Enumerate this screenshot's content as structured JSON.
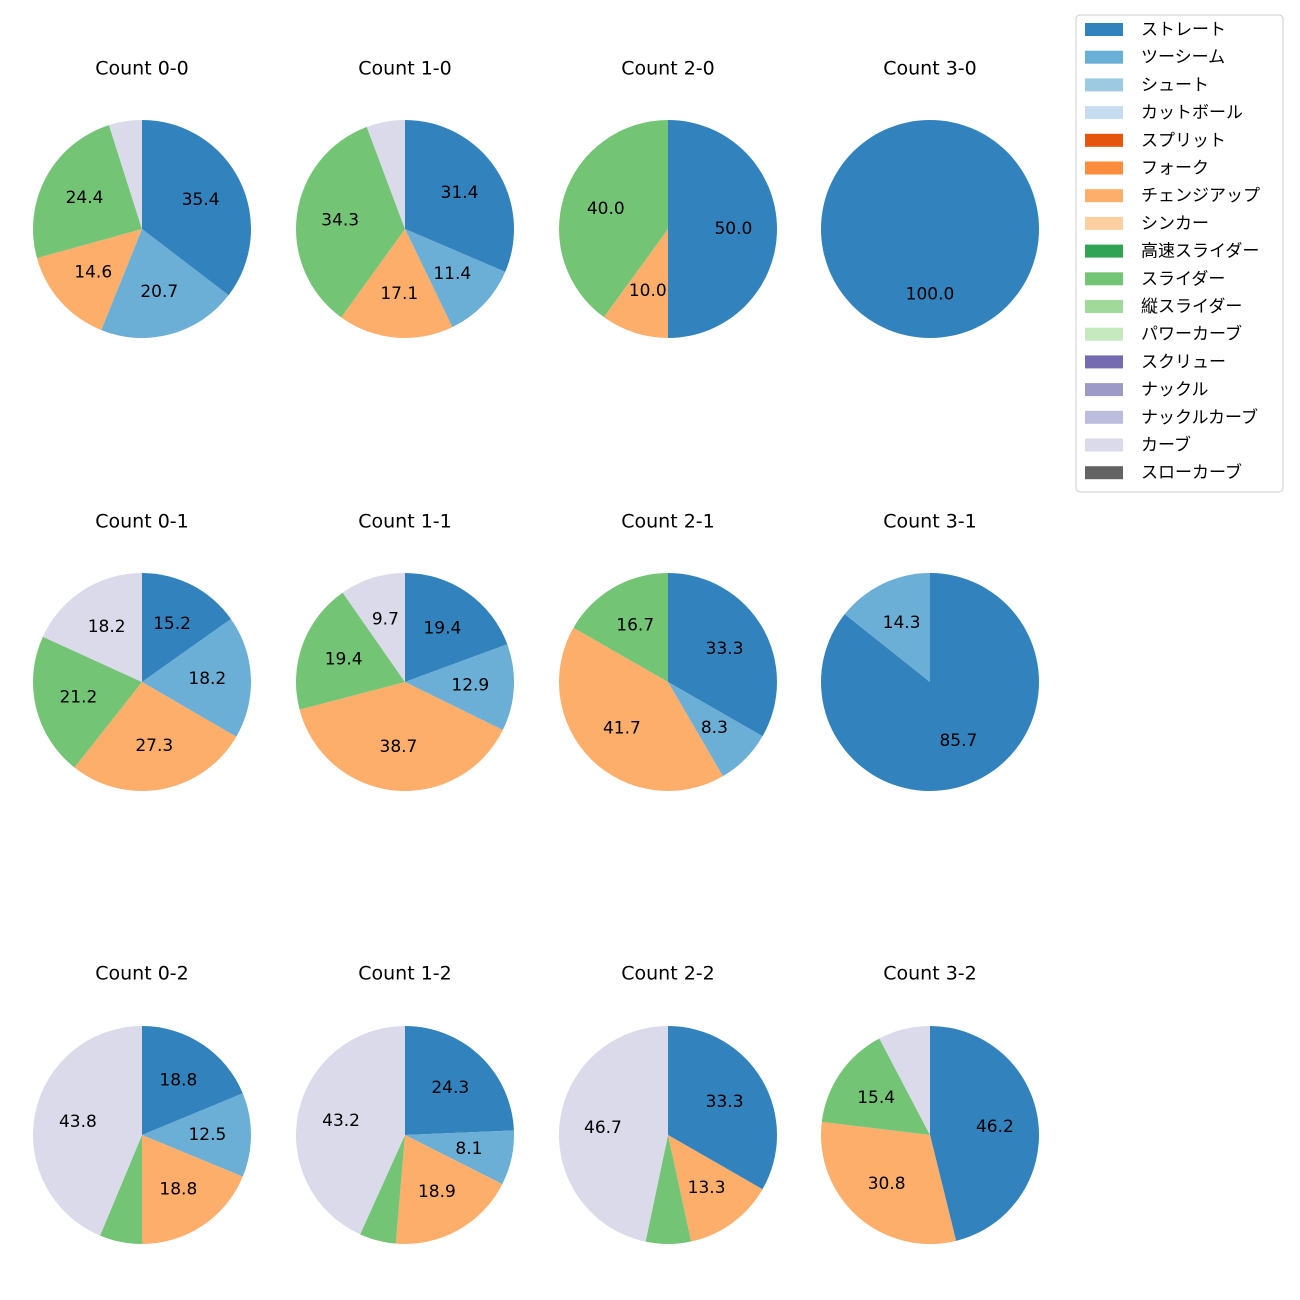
{
  "legend": [
    {
      "name": "ストレート",
      "color": "#3182bd"
    },
    {
      "name": "ツーシーム",
      "color": "#6baed6"
    },
    {
      "name": "シュート",
      "color": "#9ecae1"
    },
    {
      "name": "カットボール",
      "color": "#c6dbef"
    },
    {
      "name": "スプリット",
      "color": "#e6550d"
    },
    {
      "name": "フォーク",
      "color": "#fd8d3c"
    },
    {
      "name": "チェンジアップ",
      "color": "#fdae6b"
    },
    {
      "name": "シンカー",
      "color": "#fdd0a2"
    },
    {
      "name": "高速スライダー",
      "color": "#31a354"
    },
    {
      "name": "スライダー",
      "color": "#74c476"
    },
    {
      "name": "縦スライダー",
      "color": "#a1d99b"
    },
    {
      "name": "パワーカーブ",
      "color": "#c7e9c0"
    },
    {
      "name": "スクリュー",
      "color": "#756bb1"
    },
    {
      "name": "ナックル",
      "color": "#9e9ac8"
    },
    {
      "name": "ナックルカーブ",
      "color": "#bcbddc"
    },
    {
      "name": "カーブ",
      "color": "#dadaeb"
    },
    {
      "name": "スローカーブ",
      "color": "#636363"
    }
  ],
  "chart_data": [
    {
      "type": "pie",
      "title": "Count 0-0",
      "slices": [
        {
          "category": "ストレート",
          "value": 35.4,
          "label": "35.4"
        },
        {
          "category": "ツーシーム",
          "value": 20.7,
          "label": "20.7"
        },
        {
          "category": "チェンジアップ",
          "value": 14.6,
          "label": "14.6"
        },
        {
          "category": "スライダー",
          "value": 24.4,
          "label": "24.4"
        },
        {
          "category": "カーブ",
          "value": 4.9,
          "label": ""
        }
      ]
    },
    {
      "type": "pie",
      "title": "Count 1-0",
      "slices": [
        {
          "category": "ストレート",
          "value": 31.4,
          "label": "31.4"
        },
        {
          "category": "ツーシーム",
          "value": 11.4,
          "label": "11.4"
        },
        {
          "category": "チェンジアップ",
          "value": 17.1,
          "label": "17.1"
        },
        {
          "category": "スライダー",
          "value": 34.3,
          "label": "34.3"
        },
        {
          "category": "カーブ",
          "value": 5.7,
          "label": ""
        }
      ]
    },
    {
      "type": "pie",
      "title": "Count 2-0",
      "slices": [
        {
          "category": "ストレート",
          "value": 50.0,
          "label": "50.0"
        },
        {
          "category": "チェンジアップ",
          "value": 10.0,
          "label": "10.0"
        },
        {
          "category": "スライダー",
          "value": 40.0,
          "label": "40.0"
        }
      ]
    },
    {
      "type": "pie",
      "title": "Count 3-0",
      "slices": [
        {
          "category": "ストレート",
          "value": 100.0,
          "label": "100.0"
        }
      ]
    },
    {
      "type": "pie",
      "title": "Count 0-1",
      "slices": [
        {
          "category": "ストレート",
          "value": 15.2,
          "label": "15.2"
        },
        {
          "category": "ツーシーム",
          "value": 18.2,
          "label": "18.2"
        },
        {
          "category": "チェンジアップ",
          "value": 27.3,
          "label": "27.3"
        },
        {
          "category": "スライダー",
          "value": 21.2,
          "label": "21.2"
        },
        {
          "category": "カーブ",
          "value": 18.2,
          "label": "18.2"
        }
      ]
    },
    {
      "type": "pie",
      "title": "Count 1-1",
      "slices": [
        {
          "category": "ストレート",
          "value": 19.4,
          "label": "19.4"
        },
        {
          "category": "ツーシーム",
          "value": 12.9,
          "label": "12.9"
        },
        {
          "category": "チェンジアップ",
          "value": 38.7,
          "label": "38.7"
        },
        {
          "category": "スライダー",
          "value": 19.4,
          "label": "19.4"
        },
        {
          "category": "カーブ",
          "value": 9.7,
          "label": "9.7"
        }
      ]
    },
    {
      "type": "pie",
      "title": "Count 2-1",
      "slices": [
        {
          "category": "ストレート",
          "value": 33.3,
          "label": "33.3"
        },
        {
          "category": "ツーシーム",
          "value": 8.3,
          "label": "8.3"
        },
        {
          "category": "チェンジアップ",
          "value": 41.7,
          "label": "41.7"
        },
        {
          "category": "スライダー",
          "value": 16.7,
          "label": "16.7"
        }
      ]
    },
    {
      "type": "pie",
      "title": "Count 3-1",
      "slices": [
        {
          "category": "ストレート",
          "value": 85.7,
          "label": "85.7"
        },
        {
          "category": "ツーシーム",
          "value": 14.3,
          "label": "14.3"
        }
      ]
    },
    {
      "type": "pie",
      "title": "Count 0-2",
      "slices": [
        {
          "category": "ストレート",
          "value": 18.8,
          "label": "18.8"
        },
        {
          "category": "ツーシーム",
          "value": 12.5,
          "label": "12.5"
        },
        {
          "category": "チェンジアップ",
          "value": 18.8,
          "label": "18.8"
        },
        {
          "category": "スライダー",
          "value": 6.3,
          "label": ""
        },
        {
          "category": "カーブ",
          "value": 43.8,
          "label": "43.8"
        }
      ]
    },
    {
      "type": "pie",
      "title": "Count 1-2",
      "slices": [
        {
          "category": "ストレート",
          "value": 24.3,
          "label": "24.3"
        },
        {
          "category": "ツーシーム",
          "value": 8.1,
          "label": "8.1"
        },
        {
          "category": "チェンジアップ",
          "value": 18.9,
          "label": "18.9"
        },
        {
          "category": "スライダー",
          "value": 5.4,
          "label": ""
        },
        {
          "category": "カーブ",
          "value": 43.2,
          "label": "43.2"
        }
      ]
    },
    {
      "type": "pie",
      "title": "Count 2-2",
      "slices": [
        {
          "category": "ストレート",
          "value": 33.3,
          "label": "33.3"
        },
        {
          "category": "チェンジアップ",
          "value": 13.3,
          "label": "13.3"
        },
        {
          "category": "スライダー",
          "value": 6.7,
          "label": ""
        },
        {
          "category": "カーブ",
          "value": 46.7,
          "label": "46.7"
        }
      ]
    },
    {
      "type": "pie",
      "title": "Count 3-2",
      "slices": [
        {
          "category": "ストレート",
          "value": 46.2,
          "label": "46.2"
        },
        {
          "category": "チェンジアップ",
          "value": 30.8,
          "label": "30.8"
        },
        {
          "category": "スライダー",
          "value": 15.4,
          "label": "15.4"
        },
        {
          "category": "カーブ",
          "value": 7.7,
          "label": ""
        }
      ]
    }
  ]
}
